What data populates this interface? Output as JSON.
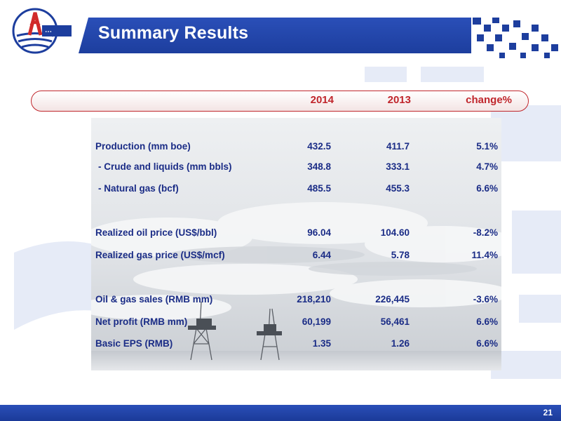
{
  "slide": {
    "title": "Summary Results",
    "page_number": "21",
    "logo_icon": "cnooc-logo-icon"
  },
  "table": {
    "headers": [
      "2014",
      "2013",
      "change%"
    ],
    "rows": [
      {
        "label": "Production (mm boe)",
        "v2014": "432.5",
        "v2013": "411.7",
        "change": "5.1%",
        "sub": false
      },
      {
        "label": "-  Crude and liquids (mm bbls)",
        "v2014": "348.8",
        "v2013": "333.1",
        "change": "4.7%",
        "sub": true
      },
      {
        "label": "-  Natural gas (bcf)",
        "v2014": "485.5",
        "v2013": "455.3",
        "change": "6.6%",
        "sub": true
      },
      {
        "label": "Realized oil price (US$/bbl)",
        "v2014": "96.04",
        "v2013": "104.60",
        "change": "-8.2%",
        "sub": false
      },
      {
        "label": "Realized gas price (US$/mcf)",
        "v2014": "6.44",
        "v2013": "5.78",
        "change": "11.4%",
        "sub": false
      },
      {
        "label": "Oil & gas sales (RMB mm)",
        "v2014": "218,210",
        "v2013": "226,445",
        "change": "-3.6%",
        "sub": false
      },
      {
        "label": "Net profit (RMB mm)",
        "v2014": "60,199",
        "v2013": "56,461",
        "change": "6.6%",
        "sub": false
      },
      {
        "label": "Basic EPS (RMB)",
        "v2014": "1.35",
        "v2013": "1.26",
        "change": "6.6%",
        "sub": false
      }
    ]
  },
  "colors": {
    "brand_blue": "#1d3e9e",
    "accent_red": "#c0262c",
    "text_navy": "#1a2c86"
  }
}
